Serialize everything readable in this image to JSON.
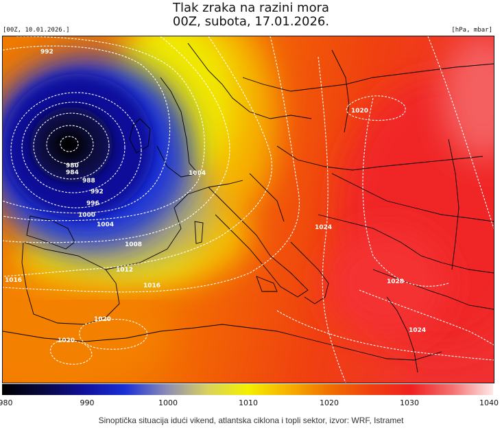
{
  "title": {
    "line1": "Tlak zraka na razini mora",
    "line2": "00Z, subota, 17.01.2026."
  },
  "run_label": "[00Z, 10.01.2026.]",
  "units_label": "[hPa, mbar]",
  "caption": "Sinoptička situacija idući vikend, atlantska ciklona i topli sektor, izvor: WRF, Istramet",
  "isobar_labels": [
    "992",
    "980",
    "984",
    "988",
    "992",
    "996",
    "1000",
    "1004",
    "1004",
    "1008",
    "1012",
    "1016",
    "1016",
    "1020",
    "1020",
    "1020",
    "1024",
    "1024",
    "1028"
  ],
  "colorbar": {
    "ticks": [
      "980",
      "990",
      "1000",
      "1010",
      "1020",
      "1030",
      "1040"
    ],
    "stops": [
      {
        "value": 980,
        "color": "#000000"
      },
      {
        "value": 985,
        "color": "#08083f"
      },
      {
        "value": 990,
        "color": "#10109a"
      },
      {
        "value": 995,
        "color": "#1a2fd6"
      },
      {
        "value": 1000,
        "color": "#8a8ab8"
      },
      {
        "value": 1005,
        "color": "#d9d060"
      },
      {
        "value": 1010,
        "color": "#f4f000"
      },
      {
        "value": 1015,
        "color": "#f7b000"
      },
      {
        "value": 1020,
        "color": "#f07000"
      },
      {
        "value": 1025,
        "color": "#f04010"
      },
      {
        "value": 1030,
        "color": "#f02020"
      },
      {
        "value": 1035,
        "color": "#f47070"
      },
      {
        "value": 1040,
        "color": "#ffe8e8"
      }
    ]
  },
  "map": {
    "low_center_pressure_hPa": 976,
    "high_center_label": "1028",
    "contour_style": "white dashed isobars",
    "coastline_color": "#000000"
  }
}
